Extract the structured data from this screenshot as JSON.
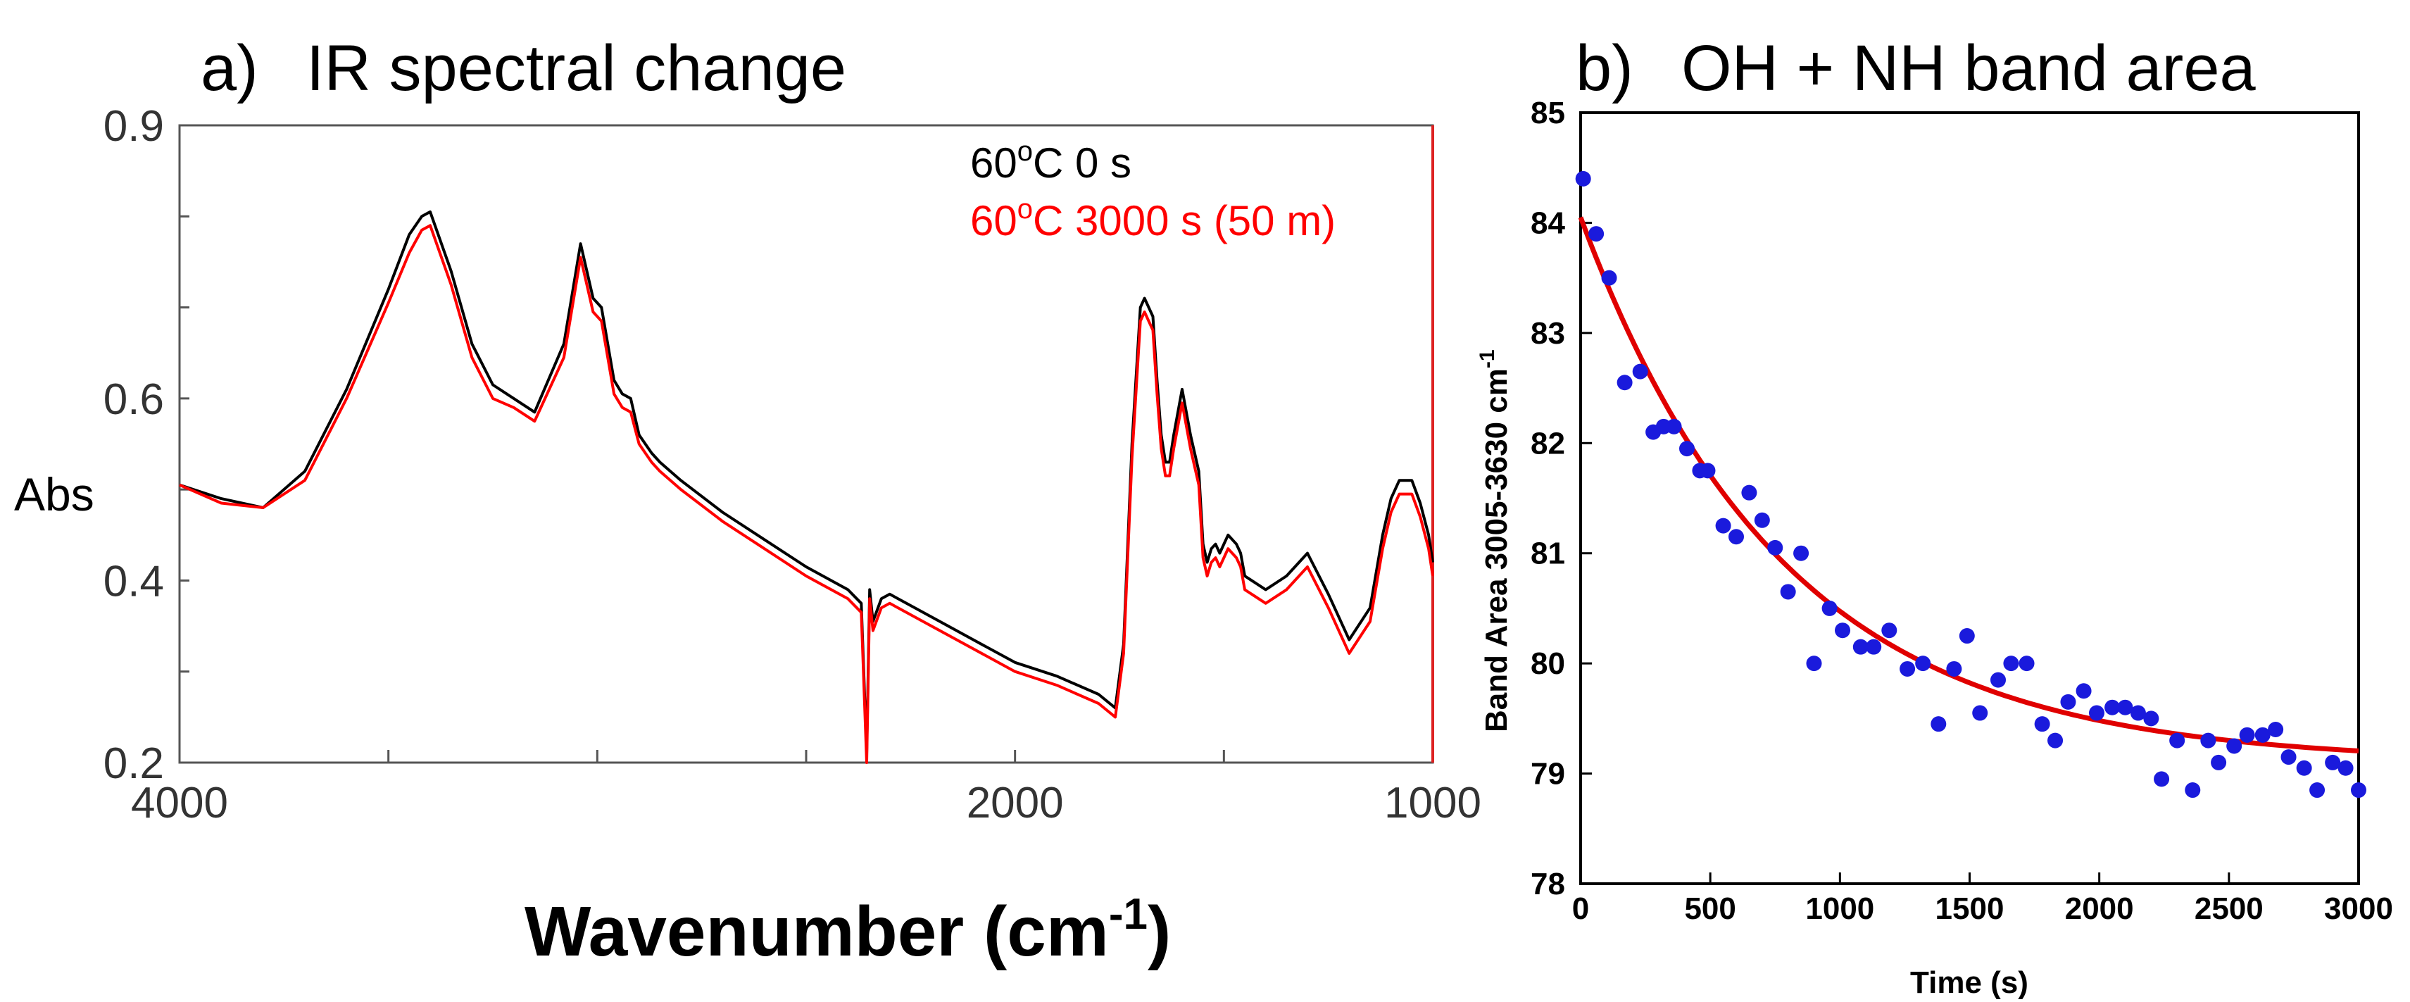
{
  "chart_data": [
    {
      "type": "line",
      "panel_label": "a)",
      "title": "IR spectral change",
      "xlabel": "Wavenumber (cm",
      "xlabel_sup": "-1",
      "xlabel_close": ")",
      "ylabel": "Abs",
      "xlim": [
        4000,
        1000
      ],
      "ylim": [
        0.2,
        0.9
      ],
      "x_ticks": [
        4000,
        2000,
        1000
      ],
      "x_tick_labels": [
        "4000",
        "2000",
        "1000"
      ],
      "y_ticks": [
        0.2,
        0.4,
        0.6,
        0.9
      ],
      "y_tick_labels": [
        "0.2",
        "0.4",
        "0.6",
        "0.9"
      ],
      "series": [
        {
          "name": "60oC  0 s",
          "legend": {
            "pre": "60",
            "sup": "o",
            "post": "C  0 s"
          },
          "color": "#000000",
          "x": [
            4000,
            3900,
            3800,
            3700,
            3600,
            3500,
            3450,
            3420,
            3400,
            3350,
            3300,
            3250,
            3200,
            3150,
            3080,
            3040,
            3010,
            2990,
            2960,
            2940,
            2920,
            2900,
            2870,
            2850,
            2800,
            2700,
            2600,
            2500,
            2400,
            2368,
            2355,
            2348,
            2340,
            2320,
            2300,
            2200,
            2100,
            2000,
            1900,
            1800,
            1760,
            1740,
            1720,
            1700,
            1690,
            1670,
            1660,
            1650,
            1640,
            1630,
            1620,
            1600,
            1580,
            1560,
            1550,
            1540,
            1530,
            1520,
            1510,
            1490,
            1470,
            1460,
            1450,
            1400,
            1350,
            1300,
            1250,
            1200,
            1150,
            1120,
            1100,
            1080,
            1050,
            1030,
            1010,
            1000
          ],
          "y": [
            0.505,
            0.49,
            0.48,
            0.52,
            0.61,
            0.72,
            0.78,
            0.8,
            0.805,
            0.74,
            0.66,
            0.615,
            0.6,
            0.585,
            0.66,
            0.77,
            0.71,
            0.7,
            0.62,
            0.605,
            0.6,
            0.56,
            0.54,
            0.53,
            0.51,
            0.475,
            0.445,
            0.415,
            0.39,
            0.375,
            0.21,
            0.39,
            0.355,
            0.38,
            0.385,
            0.36,
            0.335,
            0.31,
            0.295,
            0.275,
            0.26,
            0.33,
            0.55,
            0.7,
            0.71,
            0.69,
            0.62,
            0.56,
            0.53,
            0.53,
            0.56,
            0.61,
            0.56,
            0.52,
            0.44,
            0.42,
            0.435,
            0.44,
            0.43,
            0.45,
            0.44,
            0.43,
            0.405,
            0.39,
            0.405,
            0.43,
            0.385,
            0.335,
            0.37,
            0.45,
            0.49,
            0.51,
            0.51,
            0.485,
            0.45,
            0.42
          ]
        },
        {
          "name": "60oC 3000 s (50 m)",
          "legend": {
            "pre": "60",
            "sup": "o",
            "post": "C 3000 s (50 m)"
          },
          "color": "#ff0000",
          "x": [
            4000,
            3900,
            3800,
            3700,
            3600,
            3500,
            3450,
            3420,
            3400,
            3350,
            3300,
            3250,
            3200,
            3150,
            3080,
            3040,
            3010,
            2990,
            2960,
            2940,
            2920,
            2900,
            2870,
            2850,
            2800,
            2700,
            2600,
            2500,
            2400,
            2368,
            2355,
            2348,
            2340,
            2320,
            2300,
            2200,
            2100,
            2000,
            1900,
            1800,
            1760,
            1740,
            1720,
            1700,
            1690,
            1670,
            1660,
            1650,
            1640,
            1630,
            1620,
            1600,
            1580,
            1560,
            1550,
            1540,
            1530,
            1520,
            1510,
            1490,
            1470,
            1460,
            1450,
            1400,
            1350,
            1300,
            1250,
            1200,
            1150,
            1120,
            1100,
            1080,
            1050,
            1030,
            1010,
            1000
          ],
          "y": [
            0.505,
            0.485,
            0.48,
            0.51,
            0.6,
            0.705,
            0.76,
            0.785,
            0.79,
            0.725,
            0.645,
            0.6,
            0.59,
            0.575,
            0.645,
            0.755,
            0.695,
            0.685,
            0.605,
            0.59,
            0.585,
            0.55,
            0.53,
            0.52,
            0.5,
            0.465,
            0.435,
            0.405,
            0.38,
            0.365,
            0.2,
            0.38,
            0.345,
            0.37,
            0.375,
            0.35,
            0.325,
            0.3,
            0.285,
            0.265,
            0.25,
            0.32,
            0.535,
            0.685,
            0.695,
            0.675,
            0.605,
            0.545,
            0.515,
            0.515,
            0.545,
            0.595,
            0.545,
            0.505,
            0.425,
            0.405,
            0.42,
            0.425,
            0.415,
            0.435,
            0.425,
            0.415,
            0.39,
            0.375,
            0.39,
            0.415,
            0.37,
            0.32,
            0.355,
            0.435,
            0.475,
            0.495,
            0.495,
            0.47,
            0.435,
            0.405
          ]
        }
      ]
    },
    {
      "type": "scatter",
      "panel_label": "b)",
      "title": "OH + NH band area",
      "xlabel": "Time (s)",
      "ylabel": "Band Area 3005-3630 cm",
      "ylabel_sup": "-1",
      "xlim": [
        0,
        3000
      ],
      "ylim": [
        78,
        85
      ],
      "x_ticks": [
        0,
        500,
        1000,
        1500,
        2000,
        2500,
        3000
      ],
      "x_tick_labels": [
        "0",
        "500",
        "1000",
        "1500",
        "2000",
        "2500",
        "3000"
      ],
      "y_ticks": [
        78,
        79,
        80,
        81,
        82,
        83,
        84,
        85
      ],
      "y_tick_labels": [
        "78",
        "79",
        "80",
        "81",
        "82",
        "83",
        "84",
        "85"
      ],
      "points": {
        "color": "#1a1adc",
        "x": [
          10,
          60,
          110,
          170,
          230,
          280,
          320,
          360,
          410,
          460,
          490,
          550,
          600,
          650,
          700,
          750,
          800,
          850,
          900,
          960,
          1010,
          1080,
          1130,
          1190,
          1260,
          1320,
          1380,
          1440,
          1490,
          1540,
          1610,
          1660,
          1720,
          1780,
          1830,
          1880,
          1940,
          1990,
          2050,
          2100,
          2150,
          2200,
          2240,
          2300,
          2360,
          2420,
          2460,
          2520,
          2570,
          2630,
          2680,
          2730,
          2790,
          2840,
          2900,
          2950,
          3000
        ],
        "y": [
          84.4,
          83.9,
          83.5,
          82.55,
          82.65,
          82.1,
          82.15,
          82.15,
          81.95,
          81.75,
          81.75,
          81.25,
          81.15,
          81.55,
          81.3,
          81.05,
          80.65,
          81.0,
          80.0,
          80.5,
          80.3,
          80.15,
          80.15,
          80.3,
          79.95,
          80.0,
          79.45,
          79.95,
          80.25,
          79.55,
          79.85,
          80.0,
          80.0,
          79.45,
          79.3,
          79.65,
          79.75,
          79.55,
          79.6,
          79.6,
          79.55,
          79.5,
          78.95,
          79.3,
          78.85,
          79.3,
          79.1,
          79.25,
          79.35,
          79.35,
          79.4,
          79.15,
          79.05,
          78.85,
          79.1,
          79.05,
          78.85
        ]
      },
      "fit": {
        "color": "#e00000",
        "model": "exponential decay",
        "y0": 79.1,
        "A": 4.95,
        "tau": 780
      }
    }
  ]
}
